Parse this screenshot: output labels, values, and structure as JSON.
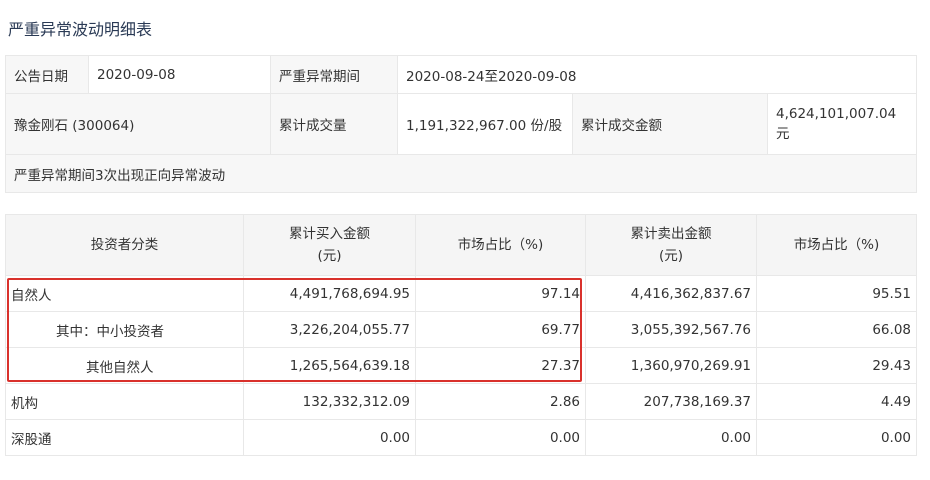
{
  "title": "严重异常波动明细表",
  "summary": {
    "announce_date_label": "公告日期",
    "announce_date": "2020-09-08",
    "period_label": "严重异常期间",
    "period": "2020-08-24至2020-09-08",
    "stock": "豫金刚石 (300064)",
    "volume_label": "累计成交量",
    "volume": "1,191,322,967.00 份/股",
    "amount_label": "累计成交金额",
    "amount": "4,624,101,007.04 元",
    "note": "严重异常期间3次出现正向异常波动"
  },
  "detail": {
    "headers": [
      "投资者分类",
      "累计买入金额(元)",
      "市场占比（%)",
      "累计卖出金额(元)",
      "市场占比（%)"
    ],
    "rows": [
      [
        "自然人",
        "4,491,768,694.95",
        "97.14",
        "4,416,362,837.67",
        "95.51"
      ],
      [
        "其中：中小投资者",
        "3,226,204,055.77",
        "69.77",
        "3,055,392,567.76",
        "66.08"
      ],
      [
        "其他自然人",
        "1,265,564,639.18",
        "27.37",
        "1,360,970,269.91",
        "29.43"
      ],
      [
        "机构",
        "132,332,312.09",
        "2.86",
        "207,738,169.37",
        "4.49"
      ],
      [
        "深股通",
        "0.00",
        "0.00",
        "0.00",
        "0.00"
      ]
    ]
  },
  "highlight_color": "#d9312c"
}
